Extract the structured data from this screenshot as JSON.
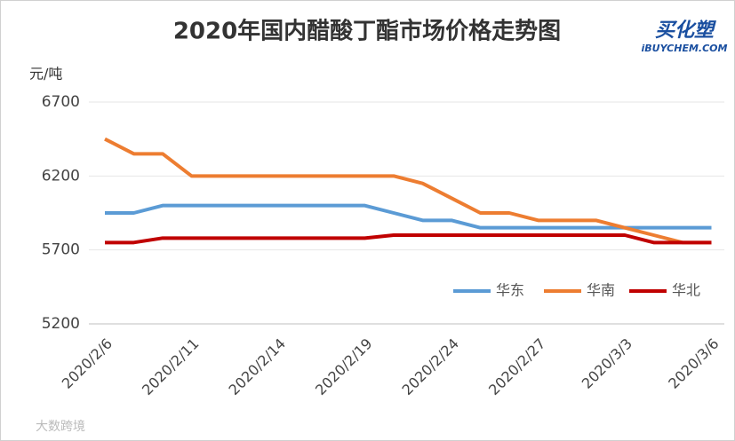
{
  "chart_data": {
    "type": "line",
    "title": "2020年国内醋酸丁酯市场价格走势图",
    "y_label": "元/吨",
    "categories": [
      "2020/2/6",
      null,
      null,
      "2020/2/11",
      null,
      null,
      "2020/2/14",
      null,
      null,
      "2020/2/19",
      null,
      null,
      "2020/2/24",
      null,
      null,
      "2020/2/27",
      null,
      null,
      "2020/3/3",
      null,
      null,
      "2020/3/6"
    ],
    "series": [
      {
        "name": "华东",
        "color": "#5b9bd5",
        "values": [
          5950,
          5950,
          6000,
          6000,
          6000,
          6000,
          6000,
          6000,
          6000,
          6000,
          5950,
          5900,
          5900,
          5850,
          5850,
          5850,
          5850,
          5850,
          5850,
          5850,
          5850,
          5850
        ]
      },
      {
        "name": "华南",
        "color": "#ed7d31",
        "values": [
          6450,
          6350,
          6350,
          6200,
          6200,
          6200,
          6200,
          6200,
          6200,
          6200,
          6200,
          6150,
          6050,
          5950,
          5950,
          5900,
          5900,
          5900,
          5850,
          5800,
          5750,
          5750
        ]
      },
      {
        "name": "华北",
        "color": "#c00000",
        "values": [
          5750,
          5750,
          5780,
          5780,
          5780,
          5780,
          5780,
          5780,
          5780,
          5780,
          5800,
          5800,
          5800,
          5800,
          5800,
          5800,
          5800,
          5800,
          5800,
          5750,
          5750,
          5750
        ]
      }
    ],
    "ylim": [
      5200,
      6700
    ],
    "yticks": [
      5200,
      5700,
      6200,
      6700
    ],
    "grid": true,
    "legend": "bottom-right"
  },
  "logo": {
    "name": "买化塑",
    "site": "iBUYCHEM.COM"
  },
  "watermark": "大数跨境"
}
